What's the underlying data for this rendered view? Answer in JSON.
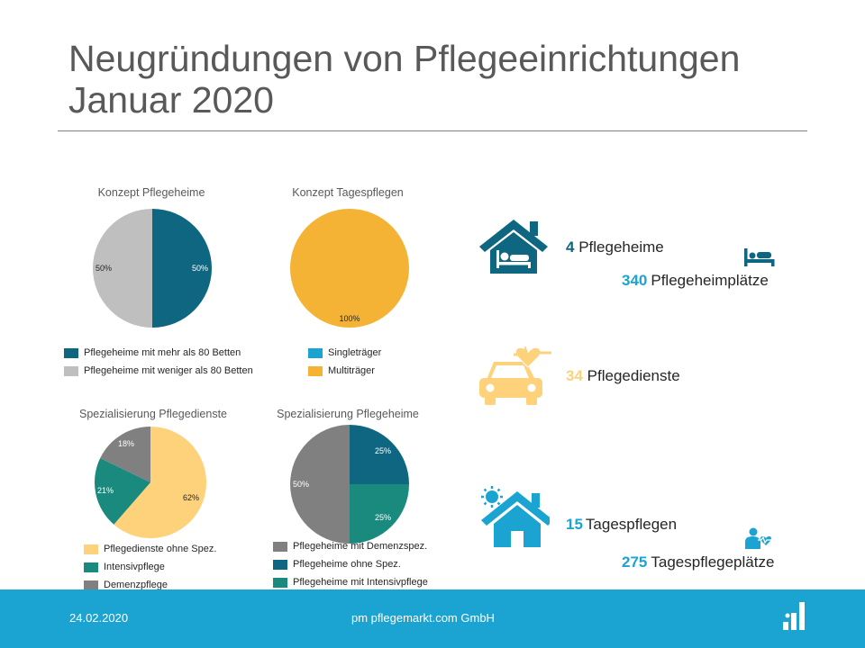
{
  "title_line1": "Neugründungen von Pflegeeinrichtungen",
  "title_line2": "Januar 2020",
  "colors": {
    "teal_dark": "#0e6680",
    "teal_green": "#1a8a7e",
    "grey": "#808080",
    "light_grey": "#bfbfbf",
    "orange": "#f5b335",
    "light_orange": "#fdd27b",
    "blue": "#1ba3d2",
    "footer_blue": "#1ba3d2"
  },
  "chart_data": [
    {
      "type": "pie",
      "title": "Konzept Pflegeheime",
      "categories": [
        "Pflegeheime mit mehr als 80 Betten",
        "Pflegeheime mit weniger als 80 Betten"
      ],
      "values": [
        50,
        50
      ],
      "labels": [
        "50%",
        "50%"
      ],
      "colors": [
        "#0e6680",
        "#bfbfbf"
      ]
    },
    {
      "type": "pie",
      "title": "Konzept Tagespflegen",
      "categories": [
        "Singleträger",
        "Multiträger"
      ],
      "values": [
        0,
        100
      ],
      "labels": [
        "",
        "100%"
      ],
      "colors": [
        "#1ba3d2",
        "#f5b335"
      ]
    },
    {
      "type": "pie",
      "title": "Spezialisierung Pflegedienste",
      "categories": [
        "Pflegedienste ohne Spez.",
        "Intensivpflege",
        "Demenzpflege"
      ],
      "values": [
        62,
        21,
        18
      ],
      "labels": [
        "62%",
        "21%",
        "18%"
      ],
      "colors": [
        "#fdd27b",
        "#1a8a7e",
        "#808080"
      ]
    },
    {
      "type": "pie",
      "title": "Spezialisierung Pflegeheime",
      "categories": [
        "Pflegeheime mit Demenzspez.",
        "Pflegeheime ohne Spez.",
        "Pflegeheime mit Intensivpflege"
      ],
      "values": [
        50,
        25,
        25
      ],
      "labels": [
        "50%",
        "25%",
        "25%"
      ],
      "colors": [
        "#808080",
        "#0e6680",
        "#1a8a7e"
      ]
    }
  ],
  "stats": {
    "pflegeheime": {
      "num": "4",
      "label": "Pflegeheime"
    },
    "pflegeheimplaetze": {
      "num": "340",
      "label": "Pflegeheimplätze"
    },
    "pflegedienste": {
      "num": "34",
      "label": "Pflegedienste"
    },
    "tagespflegen": {
      "num": "15",
      "label": "Tagespflegen"
    },
    "tagespflegeplaetze": {
      "num": "275",
      "label": "Tagespflegeplätze"
    }
  },
  "icons": [
    "house-bed-icon",
    "bed-icon",
    "car-heartbeat-icon",
    "house-sun-icon",
    "person-heart-icon",
    "logo-icon"
  ],
  "footer": {
    "date": "24.02.2020",
    "company": "pm pflegemarkt.com GmbH"
  }
}
